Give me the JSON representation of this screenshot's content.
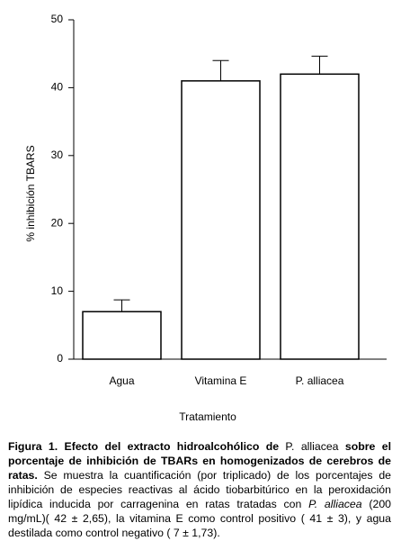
{
  "chart_data": {
    "type": "bar",
    "ylabel": "% inhibición TBARS",
    "xlabel": "Tratamiento",
    "categories": [
      "Agua",
      "Vitamina E",
      "P. alliacea"
    ],
    "values": [
      7,
      41,
      42
    ],
    "errors": [
      1.73,
      3,
      2.65
    ],
    "color": "#ffffff",
    "ylim": [
      0,
      50
    ],
    "yticks": [
      0,
      10,
      20,
      30,
      40,
      50
    ],
    "grid": false
  },
  "caption": [
    "Figura 1. Efecto del extracto hidroalcohólico de ",
    "P.",
    " alliacea",
    " sobre el porcentaje de inhibición de TBARs en homogenizados de cerebros de ratas.",
    " Se muestra la cuantificación (por triplicado) de los porcentajes de inhibición de especies reactivas al ácido tiobarbitúrico en la peroxidación lipídica inducida por carragenina en ratas tratadas con ",
    "P. alliacea",
    " (200 mg/mL)( 42 ± 2,65), la vitamina E como control positivo ( 41 ± 3), y agua destilada como control negativo ( 7 ± 1,73)."
  ]
}
